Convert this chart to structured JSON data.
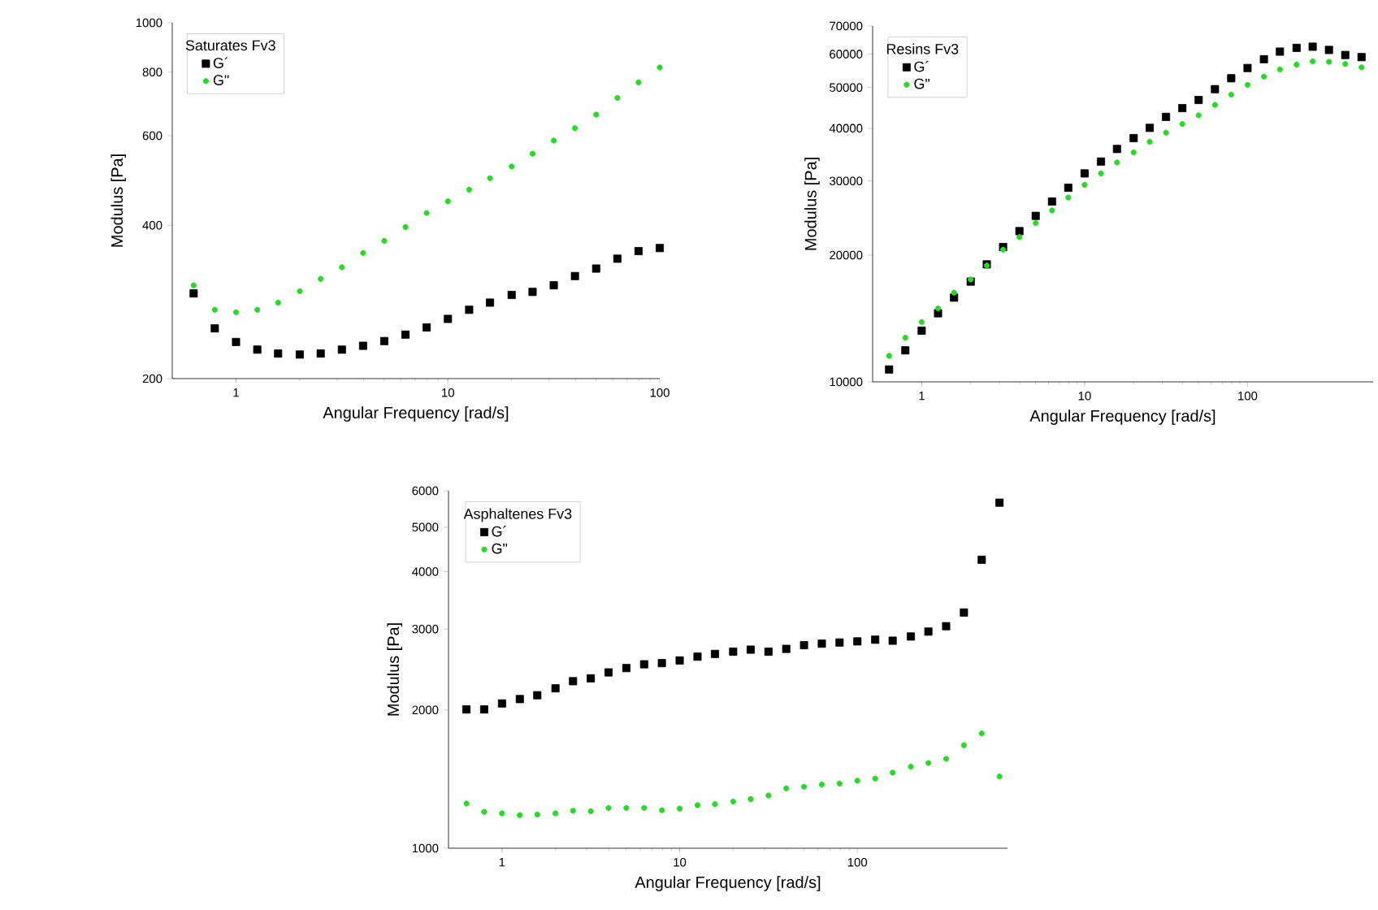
{
  "chart_data": [
    {
      "type": "scatter",
      "xlabel": "Angular Frequency [rad/s]",
      "ylabel": "Modulus [Pa]",
      "legend_title": "Saturates Fv3",
      "legend": "top left",
      "log": "xy",
      "x": [
        0.631,
        0.794,
        1,
        1.26,
        1.58,
        2,
        2.51,
        3.16,
        3.98,
        5.01,
        6.31,
        7.94,
        10,
        12.6,
        15.8,
        20,
        25.1,
        31.6,
        39.8,
        50.1,
        63.1,
        79.4,
        100
      ],
      "xlim": [
        0.5,
        100
      ],
      "xticks": [
        1,
        10,
        100
      ],
      "ylim": [
        200,
        1000
      ],
      "yticks": [
        200,
        400,
        600,
        800,
        1000
      ],
      "series": [
        {
          "name": "G´",
          "color": "#000000",
          "marker": "square",
          "values": [
            294,
            251,
            236,
            228,
            224,
            223,
            224,
            228,
            232,
            237,
            244,
            252,
            262,
            273,
            282,
            292,
            296,
            305,
            318,
            329,
            344,
            356,
            361
          ]
        },
        {
          "name": "G\"",
          "color": "#22dd22",
          "marker": "circle",
          "values": [
            305,
            273,
            270,
            273,
            282,
            297,
            314,
            331,
            353,
            373,
            397,
            423,
            446,
            470,
            495,
            522,
            553,
            587,
            621,
            660,
            712,
            764,
            817
          ]
        }
      ]
    },
    {
      "type": "scatter",
      "xlabel": "Angular Frequency [rad/s]",
      "ylabel": "Modulus [Pa]",
      "legend_title": "Resins Fv3",
      "legend": "top left",
      "log": "xy",
      "x": [
        0.631,
        0.794,
        1,
        1.26,
        1.58,
        2,
        2.51,
        3.16,
        3.98,
        5.01,
        6.31,
        7.94,
        10,
        12.6,
        15.8,
        20,
        25.1,
        31.6,
        39.8,
        50.1,
        63.1,
        79.4,
        100,
        126,
        158,
        200,
        251,
        316,
        398,
        501
      ],
      "xlim": [
        0.5,
        590
      ],
      "xticks": [
        1,
        10,
        100
      ],
      "ylim": [
        10000,
        70000
      ],
      "yticks": [
        10000,
        20000,
        30000,
        40000,
        50000,
        60000,
        70000
      ],
      "series": [
        {
          "name": "G´",
          "color": "#000000",
          "marker": "square",
          "values": [
            10700,
            11880,
            13230,
            14550,
            15850,
            17300,
            19010,
            20900,
            22800,
            24780,
            26800,
            28900,
            31260,
            33350,
            35730,
            37920,
            40100,
            42580,
            44670,
            46700,
            49550,
            52600,
            55620,
            58360,
            60840,
            62100,
            62500,
            61400,
            59730,
            59040
          ]
        },
        {
          "name": "G\"",
          "color": "#22dd22",
          "marker": "circle",
          "values": [
            11530,
            12730,
            13870,
            14940,
            16290,
            17500,
            18890,
            20600,
            22070,
            23830,
            25530,
            27400,
            29360,
            31260,
            33190,
            35080,
            37150,
            39080,
            40960,
            42960,
            45470,
            48100,
            50720,
            53070,
            55200,
            56660,
            57680,
            57540,
            56850,
            55840
          ]
        }
      ]
    },
    {
      "type": "scatter",
      "xlabel": "Angular Frequency [rad/s]",
      "ylabel": "Modulus [Pa]",
      "legend_title": "Asphaltenes Fv3",
      "legend": "top left",
      "log": "xy",
      "x": [
        0.631,
        0.794,
        1,
        1.26,
        1.58,
        2,
        2.51,
        3.16,
        3.98,
        5.01,
        6.31,
        7.94,
        10,
        12.6,
        15.8,
        20,
        25.1,
        31.6,
        39.8,
        50.1,
        63.1,
        79.4,
        100,
        126,
        158,
        200,
        251,
        316,
        398,
        501,
        631
      ],
      "xlim": [
        0.5,
        700
      ],
      "xticks": [
        1,
        10,
        100
      ],
      "ylim": [
        1000,
        6000
      ],
      "yticks": [
        1000,
        2000,
        3000,
        4000,
        5000,
        6000
      ],
      "series": [
        {
          "name": "G´",
          "color": "#000000",
          "marker": "square",
          "values": [
            2005,
            2005,
            2066,
            2112,
            2153,
            2229,
            2310,
            2343,
            2414,
            2467,
            2514,
            2529,
            2563,
            2612,
            2648,
            2678,
            2706,
            2678,
            2716,
            2767,
            2788,
            2804,
            2820,
            2844,
            2830,
            2890,
            2962,
            3043,
            3259,
            4245,
            5652
          ]
        },
        {
          "name": "G\"",
          "color": "#22dd22",
          "marker": "circle",
          "values": [
            1251,
            1200,
            1191,
            1181,
            1184,
            1191,
            1207,
            1204,
            1224,
            1224,
            1224,
            1210,
            1220,
            1241,
            1247,
            1264,
            1279,
            1303,
            1350,
            1361,
            1376,
            1383,
            1403,
            1418,
            1461,
            1505,
            1533,
            1566,
            1675,
            1778,
            1433
          ]
        }
      ]
    }
  ]
}
